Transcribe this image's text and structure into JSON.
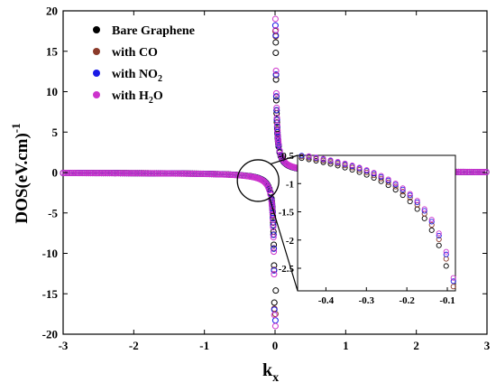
{
  "chart_data": {
    "type": "scatter",
    "ylabel": "DOS(eV.cm)",
    "ylabel_sup": "-1",
    "xlabel_main": "k",
    "xlabel_sub": "x",
    "xlim": [
      -3,
      3
    ],
    "ylim": [
      -20,
      20
    ],
    "xticks": [
      "-3",
      "-2",
      "-1",
      "0",
      "1",
      "2",
      "3"
    ],
    "yticks": [
      "-20",
      "-15",
      "-10",
      "-5",
      "0",
      "5",
      "10",
      "15",
      "20"
    ],
    "legend_position": "top-left",
    "legend": [
      {
        "text": "Bare Graphene",
        "base": "Bare Graphene",
        "sub": "",
        "tail": "",
        "color": "#000000"
      },
      {
        "text": "with CO",
        "base": "with CO",
        "sub": "",
        "tail": "",
        "color": "#8b3a2a"
      },
      {
        "text": "with NO2",
        "base": "with NO",
        "sub": "2",
        "tail": "",
        "color": "#1a1ae6"
      },
      {
        "text": "with H2O",
        "base": "with H",
        "sub": "2",
        "tail": "O",
        "color": "#cc33cc"
      }
    ],
    "series": [
      {
        "name": "Bare Graphene",
        "color": "#000000",
        "coefficient": 1.48,
        "extra_points": [
          [
            0.01,
            14.8
          ],
          [
            0.01,
            -14.6
          ]
        ]
      },
      {
        "name": "with CO",
        "color": "#8b3a2a",
        "coefficient": 1.55,
        "extra_points": [
          [
            0.005,
            17.5
          ],
          [
            0.005,
            -17.5
          ]
        ]
      },
      {
        "name": "with NO2",
        "color": "#1a1ae6",
        "coefficient": 1.56,
        "extra_points": [
          [
            0.005,
            18.2
          ],
          [
            0.005,
            -18.3
          ]
        ]
      },
      {
        "name": "with H2O",
        "color": "#cc33cc",
        "coefficient": 1.62,
        "extra_points": [
          [
            0.005,
            19.0
          ],
          [
            0.005,
            -19.0
          ]
        ]
      }
    ],
    "inset": {
      "xlim": [
        -0.47,
        -0.08
      ],
      "ylim": [
        -2.9,
        -0.5
      ],
      "xticks": [
        "-0.4",
        "-0.3",
        "-0.2",
        "-0.1"
      ],
      "yticks": [
        "-0.5",
        "-1",
        "-1.5",
        "-2",
        "-2.5"
      ],
      "series_coefficients": [
        0.253,
        0.24,
        0.232,
        0.227
      ],
      "points": 22
    }
  }
}
